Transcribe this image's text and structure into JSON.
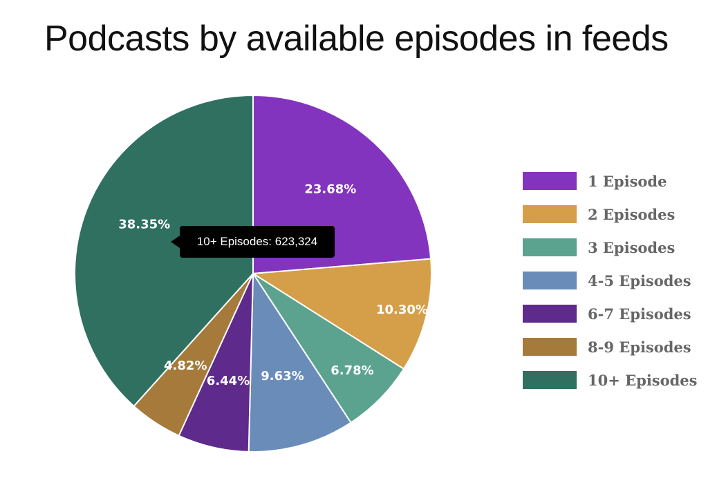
{
  "chart_data": {
    "type": "pie",
    "title": "Podcasts by available episodes in feeds",
    "categories": [
      "1 Episode",
      "2 Episodes",
      "3 Episodes",
      "4-5 Episodes",
      "6-7 Episodes",
      "8-9 Episodes",
      "10+ Episodes"
    ],
    "values": [
      23.68,
      10.3,
      6.78,
      9.63,
      6.44,
      4.82,
      38.35
    ],
    "value_labels": [
      "23.68%",
      "10.30%",
      "6.78%",
      "9.63%",
      "6.44%",
      "4.82%",
      "38.35%"
    ],
    "colors": [
      "#8334be",
      "#d59f4a",
      "#5ba38f",
      "#6a8cb9",
      "#5e2a8c",
      "#a57a3b",
      "#2f7060"
    ],
    "legend_position": "right",
    "tooltip": {
      "text": "10+ Episodes: 623,324"
    }
  }
}
